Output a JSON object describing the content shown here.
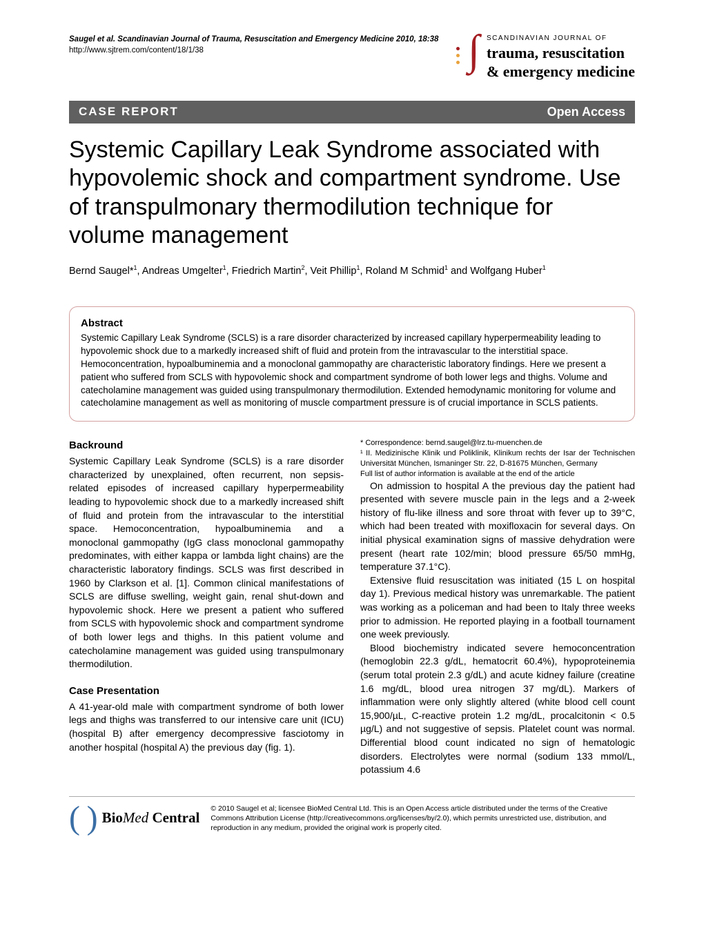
{
  "header": {
    "citation": "Saugel et al. Scandinavian Journal of Trauma, Resuscitation and Emergency Medicine 2010, 18:38",
    "url": "http://www.sjtrem.com/content/18/1/38",
    "journal_small": "SCANDINAVIAN JOURNAL OF",
    "journal_line1": "trauma, resuscitation",
    "journal_line2": "& emergency medicine"
  },
  "banner": {
    "left": "CASE REPORT",
    "right": "Open Access"
  },
  "title": "Systemic Capillary Leak Syndrome associated with hypovolemic shock and compartment syndrome. Use of transpulmonary thermodilution technique for volume management",
  "authors_html": "Bernd Saugel*¹, Andreas Umgelter¹, Friedrich Martin², Veit Phillip¹, Roland M Schmid¹ and Wolfgang Huber¹",
  "abstract": {
    "heading": "Abstract",
    "text": "Systemic Capillary Leak Syndrome (SCLS) is a rare disorder characterized by increased capillary hyperpermeability leading to hypovolemic shock due to a markedly increased shift of fluid and protein from the intravascular to the interstitial space. Hemoconcentration, hypoalbuminemia and a monoclonal gammopathy are characteristic laboratory findings. Here we present a patient who suffered from SCLS with hypovolemic shock and compartment syndrome of both lower legs and thighs. Volume and catecholamine management was guided using transpulmonary thermodilution. Extended hemodynamic monitoring for volume and catecholamine management as well as monitoring of muscle compartment pressure is of crucial importance in SCLS patients."
  },
  "sections": {
    "background": {
      "heading": "Backround",
      "p1": "Systemic Capillary Leak Syndrome (SCLS) is a rare disorder characterized by unexplained, often recurrent, non sepsis-related episodes of increased capillary hyperpermeability leading to hypovolemic shock due to a markedly increased shift of fluid and protein from the intravascular to the interstitial space. Hemoconcentration, hypoalbuminemia and a monoclonal gammopathy (IgG class monoclonal gammopathy predominates, with either kappa or lambda light chains) are the characteristic laboratory findings. SCLS was first described in 1960 by Clarkson et al. [1]. Common clinical manifestations of SCLS are diffuse swelling, weight gain, renal shut-down and hypovolemic shock. Here we present a patient who suffered from SCLS with hypovolemic shock and compartment syndrome of both lower legs and thighs. In this patient volume and catecholamine management was guided using transpulmonary thermodilution."
    },
    "case": {
      "heading": "Case Presentation",
      "p1": "A 41-year-old male with compartment syndrome of both lower legs and thighs was transferred to our intensive care unit (ICU) (hospital B) after emergency decompressive fasciotomy in another hospital (hospital A) the previous day (fig. 1).",
      "p2": "On admission to hospital A the previous day the patient had presented with severe muscle pain in the legs and a 2-week history of flu-like illness and sore throat with fever up to 39°C, which had been treated with moxifloxacin for several days. On initial physical examination signs of massive dehydration were present (heart rate 102/min; blood pressure 65/50 mmHg, temperature 37.1°C).",
      "p3": "Extensive fluid resuscitation was initiated (15 L on hospital day 1). Previous medical history was unremarkable. The patient was working as a policeman and had been to Italy three weeks prior to admission. He reported playing in a football tournament one week previously.",
      "p4": "Blood biochemistry indicated severe hemoconcentration (hemoglobin 22.3 g/dL, hematocrit 60.4%), hypoproteinemia (serum total protein 2.3 g/dL) and acute kidney failure (creatine 1.6 mg/dL, blood urea nitrogen 37 mg/dL). Markers of inflammation were only slightly altered (white blood cell count 15,900/µL, C-reactive protein 1.2 mg/dL, procalcitonin < 0.5 µg/L) and not suggestive of sepsis. Platelet count was normal. Differential blood count indicated no sign of hematologic disorders. Electrolytes were normal (sodium 133 mmol/L, potassium 4.6"
    }
  },
  "footnotes": {
    "correspondence": "* Correspondence: bernd.saugel@lrz.tu-muenchen.de",
    "affiliation": "¹ II. Medizinische Klinik und Poliklinik, Klinikum rechts der Isar der Technischen Universität München, Ismaninger Str. 22, D-81675 München, Germany",
    "fulllist": "Full list of author information is available at the end of the article"
  },
  "footer": {
    "bmc_bio": "Bio",
    "bmc_med": "Med",
    "bmc_central": " Central",
    "copyright": "© 2010 Saugel et al; licensee BioMed Central Ltd. This is an Open Access article distributed under the terms of the Creative Commons Attribution License (http://creativecommons.org/licenses/by/2.0), which permits unrestricted use, distribution, and reproduction in any medium, provided the original work is properly cited."
  },
  "colors": {
    "banner_bg": "#606060",
    "brand_red": "#a41e22",
    "brand_orange": "#e9a23b",
    "abstract_border": "#d4a0a0",
    "paren_blue": "#3a6ea5"
  }
}
